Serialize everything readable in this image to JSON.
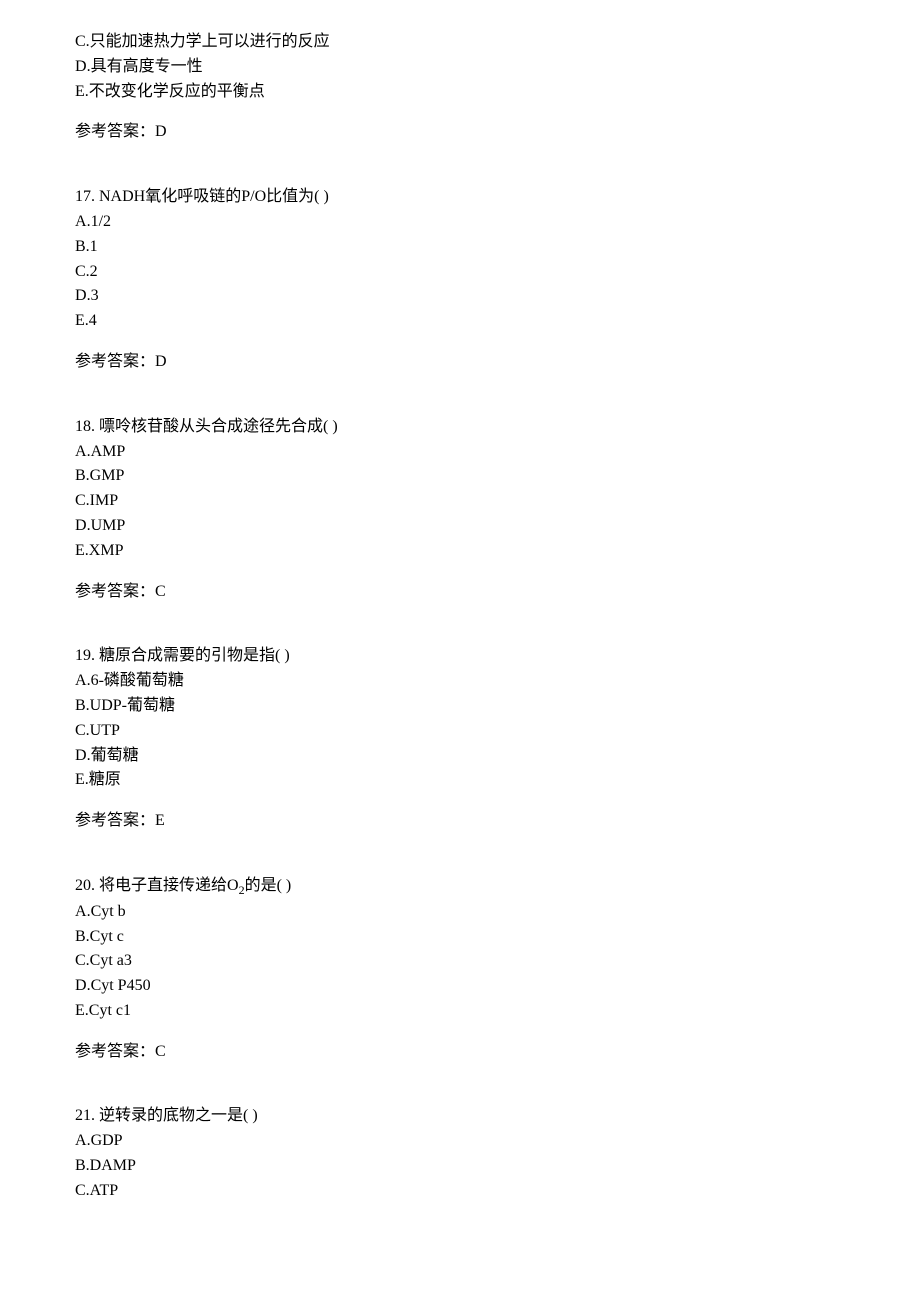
{
  "questions": [
    {
      "options": [
        {
          "label": "C",
          "text": "只能加速热力学上可以进行的反应"
        },
        {
          "label": "D",
          "text": "具有高度专一性"
        },
        {
          "label": "E",
          "text": "不改变化学反应的平衡点"
        }
      ],
      "answer_label": "参考答案：",
      "answer": "D",
      "has_stem": false
    },
    {
      "number": "17.",
      "stem_prefix": "NADH氧化呼吸链的P/O比值为(   )",
      "options": [
        {
          "label": "A",
          "text": "1/2"
        },
        {
          "label": "B",
          "text": "1"
        },
        {
          "label": "C",
          "text": "2"
        },
        {
          "label": "D",
          "text": "3"
        },
        {
          "label": "E",
          "text": "4"
        }
      ],
      "answer_label": "参考答案：",
      "answer": "D",
      "has_stem": true
    },
    {
      "number": "18.",
      "stem_prefix": "嘌呤核苷酸从头合成途径先合成(   )",
      "options": [
        {
          "label": "A",
          "text": "AMP"
        },
        {
          "label": "B",
          "text": "GMP"
        },
        {
          "label": "C",
          "text": "IMP"
        },
        {
          "label": "D",
          "text": "UMP"
        },
        {
          "label": "E",
          "text": "XMP"
        }
      ],
      "answer_label": "参考答案：",
      "answer": "C",
      "has_stem": true
    },
    {
      "number": "19.",
      "stem_prefix": "糖原合成需要的引物是指(   )",
      "options": [
        {
          "label": "A",
          "text": "6-磷酸葡萄糖"
        },
        {
          "label": "B",
          "text": "UDP-葡萄糖"
        },
        {
          "label": "C",
          "text": "UTP"
        },
        {
          "label": "D",
          "text": "葡萄糖"
        },
        {
          "label": "E",
          "text": "糖原"
        }
      ],
      "answer_label": "参考答案：",
      "answer": "E",
      "has_stem": true
    },
    {
      "number": "20.",
      "stem_html": "将电子直接传递给O<sub>2</sub>的是(   )",
      "options": [
        {
          "label": "A",
          "text": "Cyt b"
        },
        {
          "label": "B",
          "text": "Cyt c"
        },
        {
          "label": "C",
          "text": "Cyt a3"
        },
        {
          "label": "D",
          "text": "Cyt P450"
        },
        {
          "label": "E",
          "text": "Cyt c1"
        }
      ],
      "answer_label": "参考答案：",
      "answer": "C",
      "has_stem": true,
      "stem_is_html": true
    },
    {
      "number": "21.",
      "stem_prefix": "逆转录的底物之一是(   )",
      "options": [
        {
          "label": "A",
          "text": "GDP"
        },
        {
          "label": "B",
          "text": "DAMP"
        },
        {
          "label": "C",
          "text": "ATP"
        }
      ],
      "has_stem": true,
      "no_answer": true
    }
  ],
  "styling": {
    "background_color": "#ffffff",
    "text_color": "#000000",
    "font_size": 16,
    "line_height": 1.55,
    "block_spacing": 40,
    "answer_top_margin": 16
  }
}
